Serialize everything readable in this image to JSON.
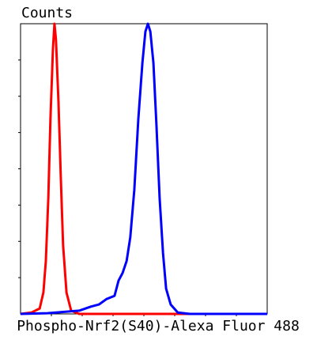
{
  "chart_data": {
    "type": "line",
    "y_label": "Counts",
    "x_label": "Phospho-Nrf2(S40)-Alexa Fluor 488",
    "xlim": [
      0,
      8
    ],
    "ylim": [
      0,
      8
    ],
    "xticks": [
      1,
      2,
      3,
      4,
      5,
      6,
      7
    ],
    "yticks": [
      1,
      2,
      3,
      4,
      5,
      6,
      7
    ],
    "series": [
      {
        "color": "#ff0000",
        "x": [
          0,
          0.36,
          0.62,
          0.74,
          0.82,
          0.9,
          0.97,
          1.05,
          1.1,
          1.15,
          1.23,
          1.31,
          1.38,
          1.49,
          1.64,
          1.9,
          8
        ],
        "values": [
          0,
          0.04,
          0.15,
          0.59,
          1.46,
          3.18,
          5.36,
          7.32,
          8,
          7.56,
          5.82,
          3.64,
          1.9,
          0.59,
          0.09,
          0,
          0
        ]
      },
      {
        "color": "#0000ff",
        "x": [
          0,
          0.87,
          1.9,
          2.28,
          2.54,
          2.79,
          3.05,
          3.18,
          3.31,
          3.44,
          3.56,
          3.69,
          3.82,
          3.95,
          4.05,
          4.13,
          4.21,
          4.31,
          4.41,
          4.51,
          4.62,
          4.72,
          4.87,
          5.1,
          5.49,
          8
        ],
        "values": [
          0,
          0.02,
          0.09,
          0.2,
          0.26,
          0.41,
          0.5,
          0.92,
          1.13,
          1.46,
          2.11,
          3.42,
          5.38,
          6.91,
          7.78,
          8,
          7.78,
          6.91,
          5.16,
          3.2,
          1.68,
          0.7,
          0.26,
          0.04,
          0,
          0
        ]
      }
    ]
  }
}
